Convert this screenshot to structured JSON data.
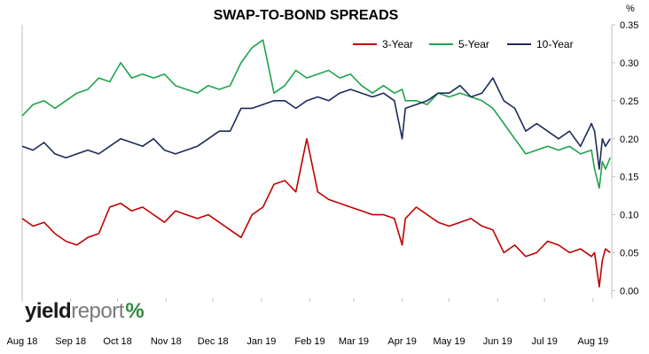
{
  "chart_data": {
    "type": "line",
    "title": "SWAP-TO-BOND SPREADS",
    "unit_label": "%",
    "ylim": [
      -0.01,
      0.35
    ],
    "yticks": [
      "0.00",
      "0.05",
      "0.10",
      "0.15",
      "0.20",
      "0.25",
      "0.30",
      "0.35"
    ],
    "xlim": [
      "2018-08-01",
      "2019-08-13"
    ],
    "xticks": [
      {
        "label": "Aug 18",
        "date": "2018-08-01"
      },
      {
        "label": "Sep 18",
        "date": "2018-09-01"
      },
      {
        "label": "Oct 18",
        "date": "2018-10-01"
      },
      {
        "label": "Nov 18",
        "date": "2018-11-01"
      },
      {
        "label": "Dec 18",
        "date": "2018-12-01"
      },
      {
        "label": "Jan 19",
        "date": "2019-01-01"
      },
      {
        "label": "Feb 19",
        "date": "2019-02-01"
      },
      {
        "label": "Mar 19",
        "date": "2019-03-01"
      },
      {
        "label": "Apr 19",
        "date": "2019-04-01"
      },
      {
        "label": "May 19",
        "date": "2019-05-01"
      },
      {
        "label": "Jun 19",
        "date": "2019-06-01"
      },
      {
        "label": "Jul 19",
        "date": "2019-07-01"
      },
      {
        "label": "Aug 19",
        "date": "2019-08-01"
      }
    ],
    "legend_position": "top-right",
    "grid": false,
    "series": [
      {
        "name": "3-Year",
        "color": "#c00000",
        "x": [
          "2018-08-01",
          "2018-08-08",
          "2018-08-15",
          "2018-08-22",
          "2018-08-29",
          "2018-09-05",
          "2018-09-12",
          "2018-09-19",
          "2018-09-26",
          "2018-10-03",
          "2018-10-10",
          "2018-10-17",
          "2018-10-24",
          "2018-10-31",
          "2018-11-07",
          "2018-11-14",
          "2018-11-21",
          "2018-11-28",
          "2018-12-05",
          "2018-12-12",
          "2018-12-19",
          "2018-12-26",
          "2019-01-02",
          "2019-01-09",
          "2019-01-16",
          "2019-01-23",
          "2019-01-30",
          "2019-02-06",
          "2019-02-13",
          "2019-02-20",
          "2019-02-27",
          "2019-03-06",
          "2019-03-13",
          "2019-03-20",
          "2019-03-27",
          "2019-04-01",
          "2019-04-03",
          "2019-04-10",
          "2019-04-17",
          "2019-04-24",
          "2019-05-01",
          "2019-05-08",
          "2019-05-15",
          "2019-05-22",
          "2019-05-29",
          "2019-06-05",
          "2019-06-12",
          "2019-06-19",
          "2019-06-26",
          "2019-07-03",
          "2019-07-10",
          "2019-07-17",
          "2019-07-24",
          "2019-07-31",
          "2019-08-02",
          "2019-08-05",
          "2019-08-07",
          "2019-08-09",
          "2019-08-12"
        ],
        "values": [
          0.095,
          0.085,
          0.09,
          0.075,
          0.065,
          0.06,
          0.07,
          0.075,
          0.11,
          0.115,
          0.105,
          0.11,
          0.1,
          0.09,
          0.105,
          0.1,
          0.095,
          0.1,
          0.09,
          0.08,
          0.07,
          0.1,
          0.11,
          0.14,
          0.145,
          0.13,
          0.2,
          0.13,
          0.12,
          0.115,
          0.11,
          0.105,
          0.1,
          0.1,
          0.095,
          0.06,
          0.095,
          0.11,
          0.1,
          0.09,
          0.085,
          0.09,
          0.095,
          0.085,
          0.08,
          0.05,
          0.06,
          0.045,
          0.05,
          0.065,
          0.06,
          0.05,
          0.055,
          0.045,
          0.05,
          0.005,
          0.04,
          0.055,
          0.05
        ]
      },
      {
        "name": "5-Year",
        "color": "#1ea34a",
        "x": [
          "2018-08-01",
          "2018-08-08",
          "2018-08-15",
          "2018-08-22",
          "2018-08-29",
          "2018-09-05",
          "2018-09-12",
          "2018-09-19",
          "2018-09-26",
          "2018-10-03",
          "2018-10-10",
          "2018-10-17",
          "2018-10-24",
          "2018-10-31",
          "2018-11-07",
          "2018-11-14",
          "2018-11-21",
          "2018-11-28",
          "2018-12-05",
          "2018-12-12",
          "2018-12-19",
          "2018-12-26",
          "2019-01-02",
          "2019-01-09",
          "2019-01-16",
          "2019-01-23",
          "2019-01-30",
          "2019-02-06",
          "2019-02-13",
          "2019-02-20",
          "2019-02-27",
          "2019-03-06",
          "2019-03-13",
          "2019-03-20",
          "2019-03-27",
          "2019-04-01",
          "2019-04-03",
          "2019-04-10",
          "2019-04-17",
          "2019-04-24",
          "2019-05-01",
          "2019-05-08",
          "2019-05-15",
          "2019-05-22",
          "2019-05-29",
          "2019-06-05",
          "2019-06-12",
          "2019-06-19",
          "2019-06-26",
          "2019-07-03",
          "2019-07-10",
          "2019-07-17",
          "2019-07-24",
          "2019-07-31",
          "2019-08-02",
          "2019-08-05",
          "2019-08-07",
          "2019-08-09",
          "2019-08-12"
        ],
        "values": [
          0.23,
          0.245,
          0.25,
          0.24,
          0.25,
          0.26,
          0.265,
          0.28,
          0.275,
          0.3,
          0.28,
          0.285,
          0.28,
          0.285,
          0.27,
          0.265,
          0.26,
          0.27,
          0.265,
          0.27,
          0.3,
          0.32,
          0.33,
          0.26,
          0.27,
          0.29,
          0.28,
          0.285,
          0.29,
          0.28,
          0.285,
          0.27,
          0.26,
          0.27,
          0.26,
          0.265,
          0.25,
          0.25,
          0.245,
          0.26,
          0.255,
          0.26,
          0.255,
          0.25,
          0.24,
          0.22,
          0.2,
          0.18,
          0.185,
          0.19,
          0.185,
          0.19,
          0.18,
          0.185,
          0.16,
          0.135,
          0.17,
          0.16,
          0.175
        ]
      },
      {
        "name": "10-Year",
        "color": "#1c2a5a",
        "x": [
          "2018-08-01",
          "2018-08-08",
          "2018-08-15",
          "2018-08-22",
          "2018-08-29",
          "2018-09-05",
          "2018-09-12",
          "2018-09-19",
          "2018-09-26",
          "2018-10-03",
          "2018-10-10",
          "2018-10-17",
          "2018-10-24",
          "2018-10-31",
          "2018-11-07",
          "2018-11-14",
          "2018-11-21",
          "2018-11-28",
          "2018-12-05",
          "2018-12-12",
          "2018-12-19",
          "2018-12-26",
          "2019-01-02",
          "2019-01-09",
          "2019-01-16",
          "2019-01-23",
          "2019-01-30",
          "2019-02-06",
          "2019-02-13",
          "2019-02-20",
          "2019-02-27",
          "2019-03-06",
          "2019-03-13",
          "2019-03-20",
          "2019-03-27",
          "2019-04-01",
          "2019-04-03",
          "2019-04-10",
          "2019-04-17",
          "2019-04-24",
          "2019-05-01",
          "2019-05-08",
          "2019-05-15",
          "2019-05-22",
          "2019-05-29",
          "2019-06-05",
          "2019-06-12",
          "2019-06-19",
          "2019-06-26",
          "2019-07-03",
          "2019-07-10",
          "2019-07-17",
          "2019-07-24",
          "2019-07-31",
          "2019-08-02",
          "2019-08-05",
          "2019-08-07",
          "2019-08-09",
          "2019-08-12"
        ],
        "values": [
          0.19,
          0.185,
          0.195,
          0.18,
          0.175,
          0.18,
          0.185,
          0.18,
          0.19,
          0.2,
          0.195,
          0.19,
          0.2,
          0.185,
          0.18,
          0.185,
          0.19,
          0.2,
          0.21,
          0.21,
          0.24,
          0.24,
          0.245,
          0.25,
          0.25,
          0.24,
          0.25,
          0.255,
          0.25,
          0.26,
          0.265,
          0.26,
          0.255,
          0.26,
          0.25,
          0.2,
          0.24,
          0.245,
          0.25,
          0.26,
          0.26,
          0.27,
          0.255,
          0.26,
          0.28,
          0.25,
          0.24,
          0.21,
          0.22,
          0.21,
          0.2,
          0.21,
          0.19,
          0.22,
          0.21,
          0.16,
          0.2,
          0.19,
          0.2
        ]
      }
    ]
  },
  "logo": {
    "part1": "yield",
    "part2": "report",
    "part3": "%"
  }
}
